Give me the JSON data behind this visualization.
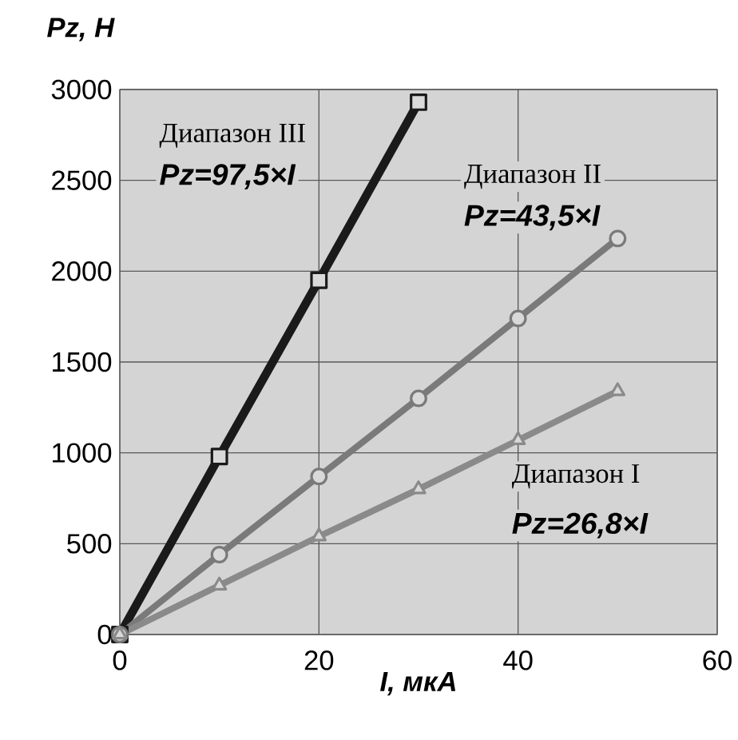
{
  "chart_data": {
    "type": "line",
    "xlabel": "I, мкА",
    "ylabel": "Pz, H",
    "x": [
      0,
      10,
      20,
      30,
      40,
      50
    ],
    "series": [
      {
        "color": "#1a1a1a",
        "marker": "square",
        "values": [
          0,
          980,
          1950,
          2930,
          null,
          null
        ]
      },
      {
        "color": "#7a7a7a",
        "marker": "circle",
        "values": [
          0,
          440,
          870,
          1300,
          1740,
          2180
        ]
      },
      {
        "color": "#8a8a8a",
        "marker": "triangle",
        "values": [
          0,
          270,
          540,
          800,
          1070,
          1340
        ]
      }
    ],
    "xlim": [
      0,
      60
    ],
    "ylim": [
      0,
      3000
    ],
    "xticks": [
      0,
      20,
      40,
      60
    ],
    "yticks": [
      0,
      500,
      1000,
      1500,
      2000,
      2500,
      3000
    ],
    "grid": true,
    "line_style": "solid",
    "annotations": [
      "Диапазон III",
      "Pz=97,5×I",
      "Диапазон II",
      "Pz=43,5×I",
      "Диапазон I",
      "Pz=26,8×I"
    ]
  }
}
